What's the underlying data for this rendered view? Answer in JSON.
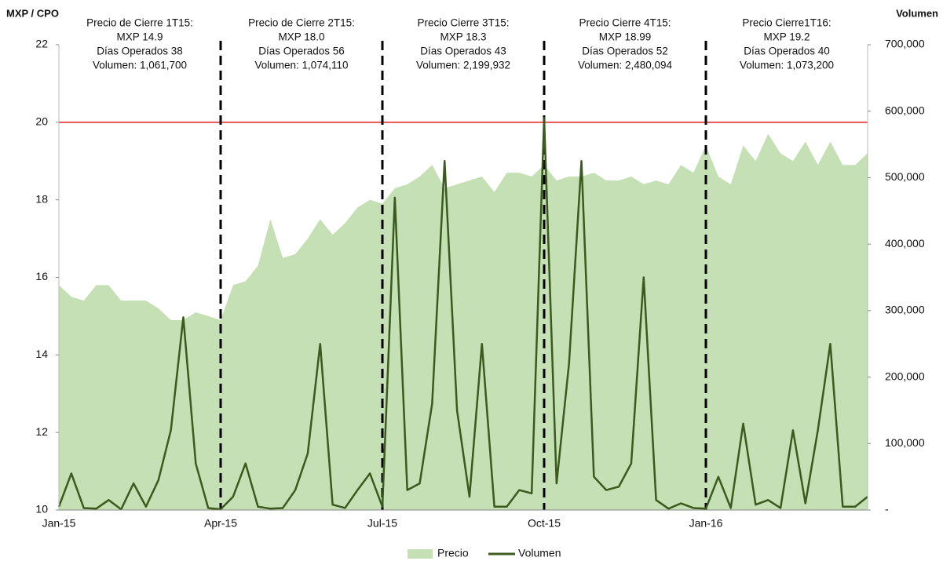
{
  "chart_data": {
    "type": "area-line",
    "y_label": "MXP / CPO",
    "y2_label": "Volumen",
    "categories": [
      "Jan-15",
      null,
      null,
      null,
      null,
      null,
      null,
      null,
      null,
      null,
      null,
      null,
      null,
      "Apr-15",
      null,
      null,
      null,
      null,
      null,
      null,
      null,
      null,
      null,
      null,
      null,
      null,
      "Jul-15",
      null,
      null,
      null,
      null,
      null,
      null,
      null,
      null,
      null,
      null,
      null,
      null,
      "Oct-15",
      null,
      null,
      null,
      null,
      null,
      null,
      null,
      null,
      null,
      null,
      null,
      null,
      "Jan-16",
      null,
      null,
      null,
      null,
      null,
      null,
      null,
      null,
      null,
      null,
      null,
      null,
      null
    ],
    "series": [
      {
        "name": "Precio",
        "color": "#c5e0b4",
        "values": [
          15.8,
          15.5,
          15.4,
          15.8,
          15.8,
          15.4,
          15.4,
          15.4,
          15.2,
          14.9,
          14.9,
          15.1,
          15.0,
          14.9,
          15.8,
          15.9,
          16.3,
          17.5,
          16.5,
          16.6,
          17.0,
          17.5,
          17.1,
          17.4,
          17.8,
          18.0,
          17.9,
          18.3,
          18.4,
          18.6,
          18.9,
          18.3,
          18.4,
          18.5,
          18.6,
          18.2,
          18.7,
          18.7,
          18.6,
          18.9,
          18.5,
          18.6,
          18.6,
          18.7,
          18.5,
          18.5,
          18.6,
          18.4,
          18.5,
          18.4,
          18.9,
          18.7,
          19.4,
          18.6,
          18.4,
          19.4,
          19.0,
          19.7,
          19.2,
          19.0,
          19.5,
          18.9,
          19.5,
          18.9,
          18.9,
          19.2
        ]
      },
      {
        "name": "Volumen",
        "color": "#3a5a1e",
        "axis": "y2",
        "values": [
          5000,
          55000,
          3000,
          2000,
          15000,
          1000,
          40000,
          5000,
          45000,
          120000,
          290000,
          70000,
          3000,
          1000,
          20000,
          70000,
          5000,
          2000,
          3000,
          30000,
          85000,
          250000,
          8000,
          3000,
          30000,
          55000,
          5000,
          470000,
          30000,
          40000,
          160000,
          525000,
          150000,
          20000,
          250000,
          5000,
          5000,
          30000,
          25000,
          590000,
          40000,
          220000,
          525000,
          50000,
          30000,
          35000,
          70000,
          350000,
          15000,
          2000,
          10000,
          3000,
          2000,
          50000,
          3000,
          130000,
          8000,
          15000,
          3000,
          120000,
          10000,
          120000,
          250000,
          5000,
          5000,
          20000
        ]
      }
    ],
    "ylim": [
      10,
      22
    ],
    "yticks": [
      10,
      12,
      14,
      16,
      18,
      20,
      22
    ],
    "y2lim": [
      0,
      700000
    ],
    "y2ticks": [
      {
        "value": 0,
        "label": "-"
      },
      {
        "value": 100000,
        "label": "100,000"
      },
      {
        "value": 200000,
        "label": "200,000"
      },
      {
        "value": 300000,
        "label": "300,000"
      },
      {
        "value": 400000,
        "label": "400,000"
      },
      {
        "value": 500000,
        "label": "500,000"
      },
      {
        "value": 600000,
        "label": "600,000"
      },
      {
        "value": 700000,
        "label": "700,000"
      }
    ],
    "reference_line": {
      "value": 20,
      "color": "#e02020"
    },
    "annotations": [
      [
        "Precio de Cierre 1T15:",
        "MXP 14.9",
        "Días Operados 38",
        "Volumen: 1,061,700"
      ],
      [
        "Precio de Cierre 2T15:",
        "MXP 18.0",
        "Días Operados 56",
        "Volumen: 1,074,110"
      ],
      [
        "Precio Cierre 3T15:",
        "MXP 18.3",
        "Días Operados 43",
        "Volumen: 2,199,932"
      ],
      [
        "Precio Cierre 4T15:",
        "MXP 18.99",
        "Días Operados 52",
        "Volumen: 2,480,094"
      ],
      [
        "Precio Cierre1T16:",
        "MXP 19.2",
        "Días Operados 40",
        "Volumen: 1,073,200"
      ]
    ]
  }
}
